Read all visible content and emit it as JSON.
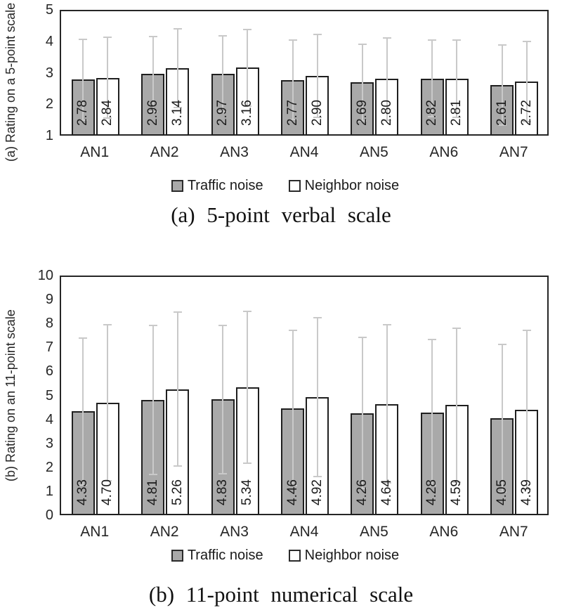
{
  "page": {
    "background": "#ffffff"
  },
  "styles": {
    "traffic_fill": "#a9a9a9",
    "neighbor_fill": "#ffffff",
    "bar_border_color": "#1f1f1f",
    "error_bar_color": "#c9c9c9",
    "axis_frame_color": "#262626",
    "text_color": "#262626"
  },
  "chart_data": [
    {
      "type": "bar",
      "panel": "a",
      "title": "(a) 5-point verbal scale",
      "ylabel": "(a) Rating on a 5-point scale",
      "xlabel": "",
      "categories": [
        "AN1",
        "AN2",
        "AN3",
        "AN4",
        "AN5",
        "AN6",
        "AN7"
      ],
      "ylim": [
        1,
        5
      ],
      "yticks": [
        1,
        2,
        3,
        4,
        5
      ],
      "grid": false,
      "legend_position": "bottom",
      "error_bars": "symmetric-sd",
      "series": [
        {
          "name": "Traffic noise",
          "fill": "#a9a9a9",
          "values": [
            2.78,
            2.96,
            2.97,
            2.77,
            2.69,
            2.82,
            2.61
          ],
          "labels": [
            "2.78",
            "2.96",
            "2.97",
            "2.77",
            "2.69",
            "2.82",
            "2.61"
          ],
          "errors": [
            1.28,
            1.19,
            1.21,
            1.26,
            1.22,
            1.22,
            1.27
          ]
        },
        {
          "name": "Neighbor noise",
          "fill": "#ffffff",
          "values": [
            2.84,
            3.14,
            3.16,
            2.9,
            2.8,
            2.81,
            2.72
          ],
          "labels": [
            "2.84",
            "3.14",
            "3.16",
            "2.90",
            "2.80",
            "2.81",
            "2.72"
          ],
          "errors": [
            1.28,
            1.25,
            1.22,
            1.31,
            1.3,
            1.22,
            1.28
          ]
        }
      ]
    },
    {
      "type": "bar",
      "panel": "b",
      "title": "(b) 11-point numerical scale",
      "ylabel": "(b) Rating on an 11-point scale",
      "xlabel": "",
      "categories": [
        "AN1",
        "AN2",
        "AN3",
        "AN4",
        "AN5",
        "AN6",
        "AN7"
      ],
      "ylim": [
        0,
        10
      ],
      "yticks": [
        0,
        1,
        2,
        3,
        4,
        5,
        6,
        7,
        8,
        9,
        10
      ],
      "grid": false,
      "legend_position": "bottom",
      "error_bars": "symmetric-sd",
      "series": [
        {
          "name": "Traffic noise",
          "fill": "#a9a9a9",
          "values": [
            4.33,
            4.81,
            4.83,
            4.46,
            4.26,
            4.28,
            4.05
          ],
          "labels": [
            "4.33",
            "4.81",
            "4.83",
            "4.46",
            "4.26",
            "4.28",
            "4.05"
          ],
          "errors": [
            3.07,
            3.1,
            3.1,
            3.24,
            3.16,
            3.06,
            3.07
          ]
        },
        {
          "name": "Neighbor noise",
          "fill": "#ffffff",
          "values": [
            4.7,
            5.26,
            5.34,
            4.92,
            4.64,
            4.59,
            4.39
          ],
          "labels": [
            "4.70",
            "5.26",
            "5.34",
            "4.92",
            "4.64",
            "4.59",
            "4.39"
          ],
          "errors": [
            3.25,
            3.21,
            3.17,
            3.31,
            3.3,
            3.22,
            3.31
          ]
        }
      ]
    }
  ]
}
